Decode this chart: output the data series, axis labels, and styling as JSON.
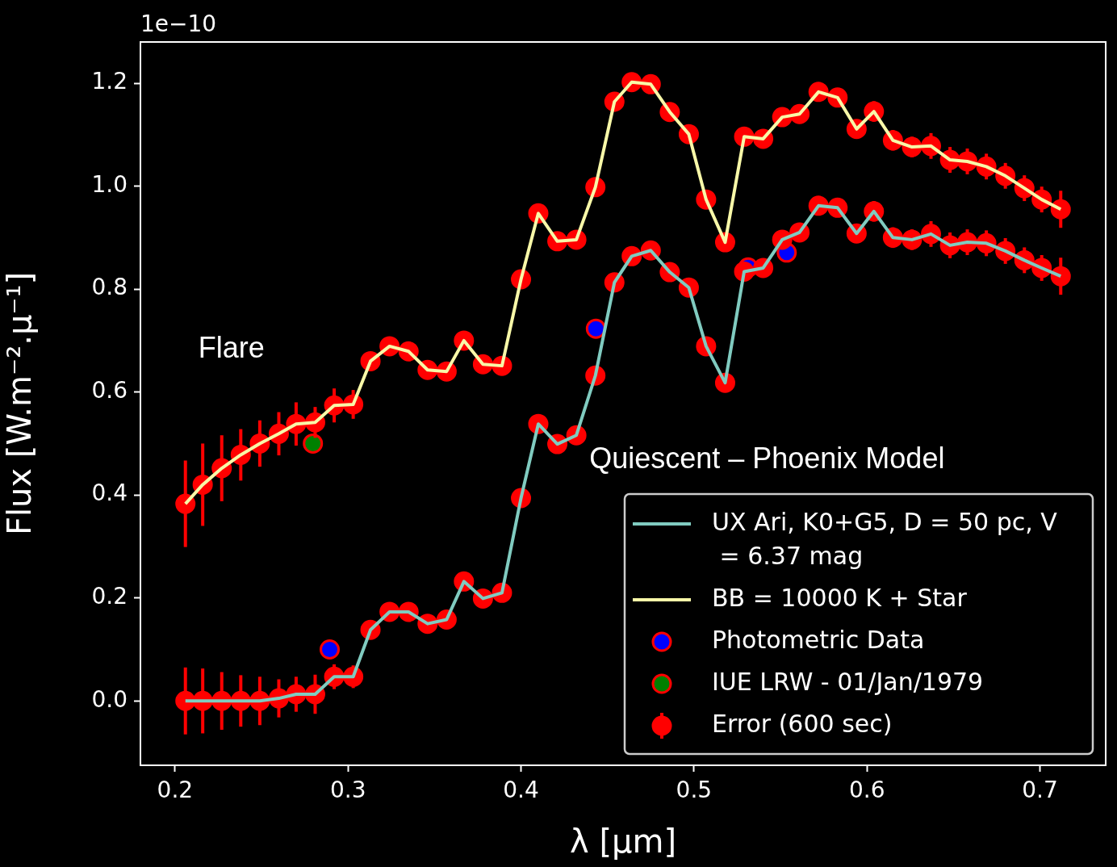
{
  "chart_data": {
    "type": "line",
    "xlabel": "λ [μm]",
    "ylabel": "Flux [W.m⁻².μ⁻¹]",
    "x": [
      0.206,
      0.216,
      0.227,
      0.238,
      0.249,
      0.26,
      0.27,
      0.281,
      0.292,
      0.303,
      0.313,
      0.324,
      0.335,
      0.346,
      0.357,
      0.367,
      0.378,
      0.389,
      0.4,
      0.41,
      0.421,
      0.432,
      0.443,
      0.454,
      0.464,
      0.475,
      0.486,
      0.497,
      0.507,
      0.518,
      0.529,
      0.54,
      0.551,
      0.561,
      0.572,
      0.583,
      0.594,
      0.604,
      0.615,
      0.626,
      0.637,
      0.648,
      0.658,
      0.669,
      0.68,
      0.691,
      0.701,
      0.712
    ],
    "series": [
      {
        "name": "UX Ari, K0+G5, D = 50 pc, V = 6.37 mag",
        "color": "#80cbc0",
        "marker": "none",
        "values": [
          0.0,
          0.0,
          0.0,
          0.0,
          0.0,
          0.005,
          0.013,
          0.013,
          0.047,
          0.047,
          0.138,
          0.173,
          0.173,
          0.15,
          0.158,
          0.232,
          0.199,
          0.21,
          0.394,
          0.538,
          0.499,
          0.516,
          0.632,
          0.813,
          0.864,
          0.875,
          0.833,
          0.803,
          0.689,
          0.618,
          0.834,
          0.841,
          0.896,
          0.91,
          0.962,
          0.958,
          0.908,
          0.951,
          0.9,
          0.896,
          0.907,
          0.885,
          0.891,
          0.889,
          0.874,
          0.856,
          0.841,
          0.825
        ]
      },
      {
        "name": "BB = 10000 K + Star",
        "color": "#f8f8a8",
        "marker": "none",
        "values": [
          0.383,
          0.42,
          0.452,
          0.478,
          0.5,
          0.519,
          0.538,
          0.541,
          0.574,
          0.576,
          0.66,
          0.689,
          0.679,
          0.643,
          0.64,
          0.7,
          0.654,
          0.651,
          0.819,
          0.947,
          0.893,
          0.896,
          0.998,
          1.164,
          1.202,
          1.198,
          1.144,
          1.101,
          0.974,
          0.891,
          1.096,
          1.092,
          1.134,
          1.14,
          1.183,
          1.172,
          1.111,
          1.145,
          1.089,
          1.076,
          1.078,
          1.051,
          1.048,
          1.038,
          1.02,
          0.996,
          0.974,
          0.955
        ]
      },
      {
        "type": "scatter",
        "name": "Photometric Data",
        "color": "#0000ff",
        "marker": "circle",
        "x": [
          0.2894,
          0.4433,
          0.5313,
          0.5536
        ],
        "values": [
          0.1,
          0.723,
          0.842,
          0.871
        ]
      },
      {
        "type": "scatter",
        "name": "IUE LRW - 01/Jan/1979",
        "color": "#008000",
        "marker": "circle",
        "x": [
          0.2797
        ],
        "values": [
          0.5
        ]
      },
      {
        "type": "scatter",
        "name": "Error (600 sec)",
        "color": "#ff0000",
        "marker": "circle",
        "values": [
          0.0,
          0.0,
          0.0,
          0.0,
          0.0,
          0.005,
          0.013,
          0.013,
          0.047,
          0.047,
          0.138,
          0.173,
          0.173,
          0.15,
          0.158,
          0.232,
          0.199,
          0.21,
          0.394,
          0.538,
          0.499,
          0.516,
          0.632,
          0.813,
          0.864,
          0.875,
          0.833,
          0.803,
          0.689,
          0.618,
          0.834,
          0.841,
          0.896,
          0.91,
          0.962,
          0.958,
          0.908,
          0.951,
          0.9,
          0.896,
          0.907,
          0.885,
          0.891,
          0.889,
          0.874,
          0.856,
          0.841,
          0.825
        ],
        "errors": [
          0.065,
          0.063,
          0.056,
          0.05,
          0.047,
          0.037,
          0.034,
          0.038,
          0.024,
          0.022,
          null,
          null,
          null,
          null,
          null,
          null,
          null,
          null,
          null,
          null,
          null,
          null,
          null,
          null,
          null,
          null,
          null,
          null,
          null,
          null,
          null,
          null,
          null,
          null,
          null,
          null,
          null,
          0.02,
          0.02,
          0.02,
          0.025,
          0.025,
          0.025,
          0.025,
          0.025,
          0.025,
          0.025,
          0.036
        ]
      },
      {
        "type": "scatter",
        "color": "#ff0000",
        "marker": "circle",
        "values": [
          0.383,
          0.42,
          0.452,
          0.478,
          0.5,
          0.519,
          0.538,
          0.541,
          0.574,
          0.576,
          0.66,
          0.689,
          0.679,
          0.643,
          0.64,
          0.7,
          0.654,
          0.651,
          0.819,
          0.947,
          0.893,
          0.896,
          0.998,
          1.164,
          1.202,
          1.198,
          1.144,
          1.101,
          0.974,
          0.891,
          1.096,
          1.092,
          1.134,
          1.14,
          1.183,
          1.172,
          1.111,
          1.145,
          1.089,
          1.076,
          1.078,
          1.051,
          1.048,
          1.038,
          1.02,
          0.996,
          0.974,
          0.955
        ],
        "errors": [
          0.084,
          0.08,
          0.064,
          0.05,
          0.045,
          0.042,
          0.042,
          0.03,
          0.033,
          0.028,
          null,
          null,
          null,
          null,
          null,
          null,
          null,
          null,
          null,
          null,
          null,
          null,
          null,
          null,
          null,
          null,
          null,
          null,
          null,
          null,
          null,
          null,
          null,
          null,
          null,
          null,
          null,
          0.02,
          0.02,
          0.02,
          0.025,
          0.025,
          0.025,
          0.025,
          0.025,
          0.025,
          0.025,
          0.036
        ]
      }
    ],
    "xlim": [
      0.18,
      0.738
    ],
    "ylim": [
      -0.125,
      1.28
    ],
    "xticks": [
      0.2,
      0.3,
      0.4,
      0.5,
      0.6,
      0.7
    ],
    "yticks": [
      {
        "value": 0,
        "label": "0.0"
      },
      0.2,
      0.4,
      0.6,
      0.8,
      {
        "value": 1,
        "label": "1.0"
      },
      1.2
    ],
    "annotations": [
      "1e−10",
      "Flare",
      "Quiescent – Phoenix Model"
    ],
    "legend": "bottom right",
    "grid": false
  }
}
